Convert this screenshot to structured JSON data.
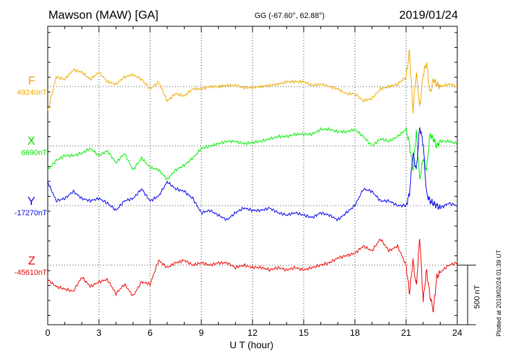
{
  "header": {
    "station": "Mawson (MAW)  [GA]",
    "coords": "GG (-67.60°,  62.88°)",
    "date": "2019/01/24"
  },
  "footer": {
    "plotted": "Plotted at 2019/02/24 01:39 UT",
    "scale": "500 nT"
  },
  "chart_data": {
    "type": "line",
    "title": "Mawson (MAW)  [GA]",
    "xlabel": "U T (hour)",
    "ylabel": "",
    "xlim": [
      0,
      24
    ],
    "xticks": [
      0,
      3,
      6,
      9,
      12,
      15,
      18,
      21,
      24
    ],
    "scale_bar_nT": 500,
    "grid": true,
    "x": [
      0,
      0.5,
      1,
      1.5,
      2,
      2.5,
      3,
      3.5,
      4,
      4.5,
      5,
      5.5,
      6,
      6.5,
      7,
      7.5,
      8,
      8.5,
      9,
      9.5,
      10,
      10.5,
      11,
      11.5,
      12,
      12.5,
      13,
      13.5,
      14,
      14.5,
      15,
      15.5,
      16,
      16.5,
      17,
      17.5,
      18,
      18.5,
      19,
      19.5,
      20,
      20.5,
      21,
      21.2,
      21.4,
      21.6,
      21.8,
      22,
      22.2,
      22.4,
      22.6,
      22.8,
      23,
      23.5,
      24
    ],
    "series": [
      {
        "name": "F",
        "baseline": "49240nT",
        "baseline_value_nT": 49240,
        "color": "#f0a800",
        "values": [
          -200,
          80,
          60,
          140,
          120,
          60,
          120,
          40,
          20,
          80,
          100,
          60,
          -20,
          40,
          -120,
          -60,
          -80,
          -20,
          -20,
          0,
          0,
          10,
          10,
          -10,
          -10,
          0,
          10,
          20,
          40,
          40,
          40,
          10,
          20,
          0,
          -20,
          -60,
          -60,
          -120,
          -100,
          -20,
          0,
          20,
          80,
          300,
          -200,
          120,
          -180,
          100,
          200,
          -60,
          60,
          20,
          0,
          20,
          0
        ]
      },
      {
        "name": "X",
        "baseline": "6690nT",
        "baseline_value_nT": 6690,
        "color": "#00ee00",
        "values": [
          -200,
          -120,
          -80,
          -80,
          -60,
          -20,
          -80,
          -40,
          -140,
          -60,
          -200,
          -100,
          -180,
          -200,
          -280,
          -200,
          -160,
          -100,
          -20,
          0,
          20,
          40,
          40,
          20,
          30,
          40,
          60,
          80,
          80,
          100,
          100,
          100,
          140,
          140,
          120,
          120,
          140,
          80,
          0,
          60,
          40,
          80,
          140,
          20,
          -200,
          120,
          -280,
          -100,
          -200,
          100,
          60,
          0,
          40,
          40,
          20
        ]
      },
      {
        "name": "Y",
        "baseline": "-17270nT",
        "baseline_value_nT": -17270,
        "color": "#0000ee",
        "values": [
          200,
          40,
          60,
          120,
          60,
          40,
          60,
          20,
          -40,
          40,
          60,
          140,
          40,
          80,
          200,
          140,
          120,
          60,
          -60,
          -40,
          -80,
          -120,
          -60,
          -20,
          -40,
          -40,
          -20,
          -60,
          -80,
          -60,
          -80,
          -100,
          -60,
          -80,
          -120,
          -60,
          0,
          140,
          120,
          40,
          40,
          0,
          0,
          100,
          440,
          300,
          660,
          520,
          100,
          40,
          20,
          0,
          -20,
          20,
          0
        ]
      },
      {
        "name": "Z",
        "baseline": "-45610nT",
        "baseline_value_nT": -45610,
        "color": "#ee0000",
        "values": [
          -120,
          -180,
          -200,
          -220,
          -100,
          -180,
          -140,
          -120,
          -240,
          -160,
          -260,
          -140,
          -160,
          40,
          -20,
          20,
          40,
          0,
          20,
          0,
          20,
          20,
          -20,
          0,
          -20,
          -20,
          -40,
          -20,
          -40,
          -20,
          -40,
          -20,
          0,
          20,
          60,
          80,
          100,
          160,
          120,
          220,
          120,
          160,
          0,
          -240,
          40,
          -180,
          240,
          -300,
          -40,
          -260,
          -380,
          -100,
          -60,
          0,
          20
        ]
      }
    ]
  }
}
